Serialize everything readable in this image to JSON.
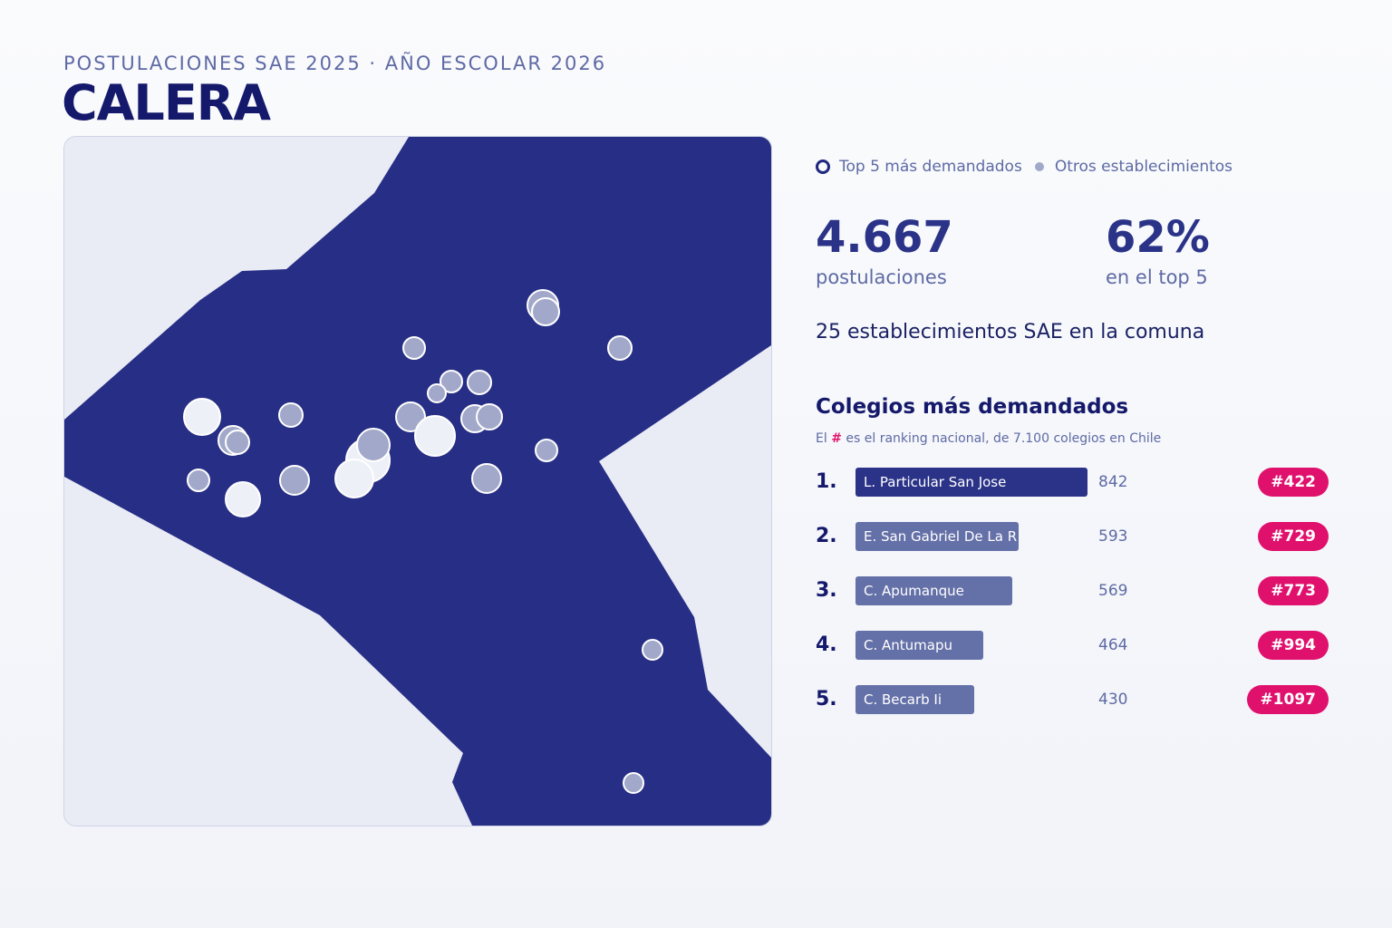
{
  "header": {
    "subtitle": "POSTULACIONES SAE 2025 · AÑO ESCOLAR 2026",
    "title": "CALERA"
  },
  "legend": {
    "top5_label": "Top 5 más demandados",
    "others_label": "Otros establecimientos"
  },
  "stats": {
    "applications_value": "4.667",
    "applications_label": "postulaciones",
    "top5_share_value": "62%",
    "top5_share_label": "en el top 5",
    "schools_line": "25 establecimientos SAE en la comuna"
  },
  "ranking": {
    "title": "Colegios más demandados",
    "note_prefix": "El",
    "note_hash": "#",
    "note_suffix": "es el ranking nacional, de 7.100 colegios en Chile",
    "max_value": 842,
    "items": [
      {
        "position": "1.",
        "name": "L. Particular San Jose",
        "value": 842,
        "value_label": "842",
        "national_rank": "#422"
      },
      {
        "position": "2.",
        "name": "E. San Gabriel De La R",
        "value": 593,
        "value_label": "593",
        "national_rank": "#729"
      },
      {
        "position": "3.",
        "name": "C. Apumanque",
        "value": 569,
        "value_label": "569",
        "national_rank": "#773"
      },
      {
        "position": "4.",
        "name": "C. Antumapu",
        "value": 464,
        "value_label": "464",
        "national_rank": "#994"
      },
      {
        "position": "5.",
        "name": "C. Becarb Ii",
        "value": 430,
        "value_label": "430",
        "national_rank": "#1097"
      }
    ]
  },
  "colors": {
    "comuna_fill": "#272e85",
    "background_land": "#e9ecf5",
    "top5_marker": "#eef0f8",
    "other_marker": "#a2a8c9",
    "badge": "#e0106d",
    "bar_first": "#2b3388",
    "bar_other": "#6470a8"
  }
}
